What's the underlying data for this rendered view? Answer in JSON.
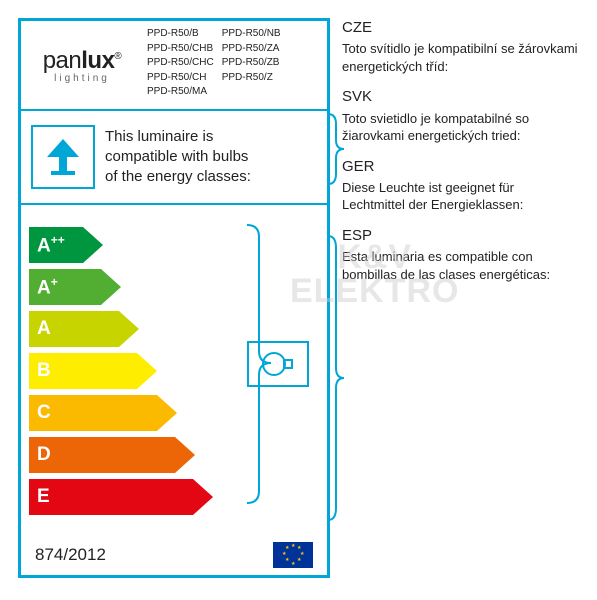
{
  "logo": {
    "pan": "pan",
    "lux": "lux",
    "reg": "®",
    "sub": "lighting"
  },
  "codes": {
    "col1": [
      "PPD-R50/B",
      "PPD-R50/CHB",
      "PPD-R50/CHC",
      "PPD-R50/CH",
      "PPD-R50/MA"
    ],
    "col2": [
      "PPD-R50/NB",
      "PPD-R50/ZA",
      "PPD-R50/ZB",
      "PPD-R50/Z"
    ]
  },
  "compat": {
    "l1": "This luminaire is",
    "l2": "compatible with bulbs",
    "l3": "of the energy classes:"
  },
  "arrows": [
    {
      "label": "A",
      "sup": "++",
      "width": 54,
      "color": "#009640"
    },
    {
      "label": "A",
      "sup": "+",
      "width": 72,
      "color": "#52ae32"
    },
    {
      "label": "A",
      "sup": "",
      "width": 90,
      "color": "#c8d400"
    },
    {
      "label": "B",
      "sup": "",
      "width": 108,
      "color": "#ffed00"
    },
    {
      "label": "C",
      "sup": "",
      "width": 128,
      "color": "#fbba00"
    },
    {
      "label": "D",
      "sup": "",
      "width": 146,
      "color": "#ec6608"
    },
    {
      "label": "E",
      "sup": "",
      "width": 164,
      "color": "#e30613"
    }
  ],
  "regulation": "874/2012",
  "translations": [
    {
      "code": "CZE",
      "text": "Toto svítidlo je kompatibilní se žárovkami energetických tříd:"
    },
    {
      "code": "SVK",
      "text": "Toto svietidlo je kompatabilné so žiarovkami energetických tried:"
    },
    {
      "code": "GER",
      "text": "Diese Leuchte ist geeignet für Lechtmittel der Energieklassen:"
    },
    {
      "code": "ESP",
      "text": "Esta luminaria es compatible con bombillas de las clases energéticas:"
    }
  ],
  "watermark": {
    "l1": "K&V",
    "l2": "ELEKTRO"
  },
  "border_color": "#00a6d6",
  "brace_height1": 74,
  "brace_height2": 288
}
